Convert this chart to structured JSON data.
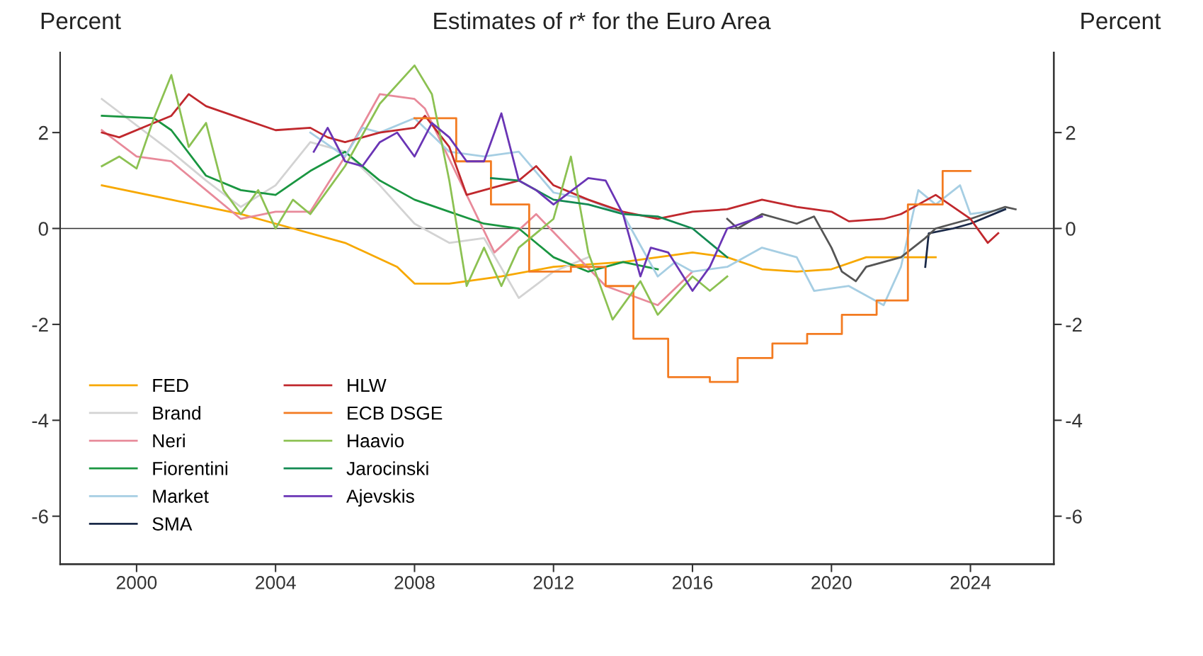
{
  "chart_data": {
    "type": "line",
    "title": "Estimates of r* for the Euro Area",
    "ylabel": "Percent",
    "y2label": "Percent",
    "xlim": [
      1997.8,
      2026.4
    ],
    "xticks": [
      2000,
      2004,
      2008,
      2012,
      2016,
      2020,
      2024
    ],
    "ylim": [
      -7,
      3.67
    ],
    "yticks": [
      {
        "value": -6,
        "label": "-6"
      },
      {
        "value": -4,
        "label": "-4"
      },
      {
        "value": -2,
        "label": "-2"
      },
      0,
      2
    ],
    "y2lim": [
      -7,
      3.67
    ],
    "y2ticks": [
      {
        "value": -6,
        "label": "-6"
      },
      {
        "value": -4,
        "label": "-4"
      },
      {
        "value": -2,
        "label": "-2"
      },
      0,
      2
    ],
    "ref_lines": [
      {
        "axis": "y",
        "value": 0,
        "label": null,
        "color": "#333333"
      }
    ],
    "legend": "bottom left",
    "grid": false,
    "series": [
      {
        "name": "FED",
        "color": "#f7a800",
        "x": [
          1999,
          2001,
          2003,
          2004,
          2006,
          2007.5,
          2008,
          2009,
          2010.5,
          2012,
          2014,
          2016,
          2017,
          2018,
          2019,
          2020,
          2021,
          2023
        ],
        "values": [
          0.9,
          0.6,
          0.3,
          0.1,
          -0.3,
          -0.8,
          -1.15,
          -1.15,
          -1.0,
          -0.8,
          -0.7,
          -0.5,
          -0.6,
          -0.85,
          -0.9,
          -0.85,
          -0.6,
          -0.6
        ]
      },
      {
        "name": "Brand",
        "color": "#d3d3d3",
        "x": [
          1999,
          2001,
          2002,
          2003,
          2004,
          2005,
          2006,
          2007,
          2008,
          2009,
          2010,
          2011,
          2012,
          2013
        ],
        "values": [
          2.7,
          1.6,
          1.0,
          0.45,
          0.9,
          1.8,
          1.6,
          0.9,
          0.1,
          -0.3,
          -0.2,
          -1.45,
          -0.9,
          -0.6
        ]
      },
      {
        "name": "Neri",
        "color": "#e88a9a",
        "x": [
          1999,
          2000,
          2001,
          2002,
          2003,
          2004,
          2005,
          2006,
          2007,
          2008,
          2008.3,
          2010.3,
          2011.5,
          2013.5,
          2015,
          2016
        ],
        "values": [
          2.05,
          1.5,
          1.4,
          0.8,
          0.2,
          0.35,
          0.35,
          1.5,
          2.8,
          2.7,
          2.5,
          -0.5,
          0.3,
          -1.2,
          -1.6,
          -0.9
        ]
      },
      {
        "name": "Fiorentini",
        "color": "#1a9641",
        "x": [
          1999,
          2000.5,
          2001,
          2002,
          2003,
          2004,
          2005,
          2006,
          2007,
          2008,
          2009,
          2010,
          2011,
          2012,
          2013,
          2014,
          2015
        ],
        "values": [
          2.35,
          2.3,
          2.05,
          1.1,
          0.8,
          0.7,
          1.2,
          1.6,
          1.0,
          0.6,
          0.35,
          0.1,
          0.0,
          -0.6,
          -0.9,
          -0.7,
          -0.85
        ]
      },
      {
        "name": "Market",
        "color": "#a6cee3",
        "x": [
          2005,
          2006,
          2006.5,
          2007,
          2008,
          2009,
          2010,
          2011,
          2012,
          2013,
          2014,
          2015,
          2015.5,
          2016,
          2017,
          2018,
          2019,
          2019.5,
          2020.5,
          2021.5,
          2022,
          2022.5,
          2023,
          2023.7,
          2024,
          2025
        ],
        "values": [
          2.0,
          1.5,
          2.1,
          2.0,
          2.3,
          1.6,
          1.5,
          1.6,
          0.75,
          0.6,
          0.3,
          -1.0,
          -0.7,
          -0.9,
          -0.8,
          -0.4,
          -0.6,
          -1.3,
          -1.2,
          -1.6,
          -0.8,
          0.8,
          0.5,
          0.9,
          0.3,
          0.4
        ]
      },
      {
        "name": "SMA",
        "color": "#1b2a49",
        "x": [
          2022.7,
          2022.8,
          2023.5,
          2024,
          2025
        ],
        "values": [
          -0.8,
          -0.1,
          0.0,
          0.1,
          0.4
        ]
      },
      {
        "color": "#555555",
        "x": [
          2017,
          2017.3,
          2018,
          2018.5,
          2019,
          2019.5,
          2020,
          2020.3,
          2020.7,
          2021,
          2022,
          2022.7,
          2023,
          2024,
          2025,
          2025.3
        ],
        "values": [
          0.2,
          0.0,
          0.3,
          0.2,
          0.1,
          0.25,
          -0.4,
          -0.9,
          -1.1,
          -0.8,
          -0.6,
          -0.2,
          0.0,
          0.2,
          0.45,
          0.4
        ]
      },
      {
        "name": "HLW",
        "color": "#c0282d",
        "x": [
          1999,
          1999.5,
          2000.5,
          2001,
          2001.5,
          2002,
          2003,
          2004,
          2005,
          2005.5,
          2006,
          2007,
          2008,
          2008.3,
          2009,
          2009.5,
          2011,
          2011.5,
          2012,
          2013,
          2014,
          2015,
          2016,
          2017,
          2018,
          2019,
          2020,
          2020.5,
          2021.5,
          2022,
          2023,
          2024,
          2024.5,
          2024.8
        ],
        "values": [
          2.0,
          1.9,
          2.2,
          2.35,
          2.8,
          2.55,
          2.3,
          2.05,
          2.1,
          1.9,
          1.8,
          2.0,
          2.1,
          2.35,
          1.7,
          0.7,
          1.0,
          1.3,
          0.9,
          0.6,
          0.35,
          0.2,
          0.35,
          0.4,
          0.6,
          0.45,
          0.35,
          0.15,
          0.2,
          0.3,
          0.7,
          0.2,
          -0.3,
          -0.1
        ]
      },
      {
        "name": "ECB DSGE",
        "color": "#f37b21",
        "type": "step",
        "x": [
          2008,
          2009.2,
          2010.2,
          2011.3,
          2012.5,
          2013.5,
          2014.3,
          2015.3,
          2016.5,
          2017.3,
          2018.3,
          2019.3,
          2020.3,
          2021.3,
          2022.2,
          2023.2,
          2024
        ],
        "values": [
          2.3,
          1.4,
          0.5,
          -0.9,
          -0.8,
          -1.2,
          -2.3,
          -3.1,
          -3.2,
          -2.7,
          -2.4,
          -2.2,
          -1.8,
          -1.5,
          0.5,
          1.2,
          1.2
        ]
      },
      {
        "name": "Haavio",
        "color": "#8cc152",
        "x": [
          1999,
          1999.5,
          2000,
          2000.5,
          2001,
          2001.5,
          2002,
          2002.5,
          2003,
          2003.5,
          2004,
          2004.5,
          2005,
          2005.5,
          2006,
          2007,
          2008,
          2008.5,
          2009,
          2009.5,
          2010,
          2010.5,
          2011,
          2012,
          2012.5,
          2013,
          2013.7,
          2014.5,
          2015,
          2016,
          2016.5,
          2017
        ],
        "values": [
          1.3,
          1.5,
          1.25,
          2.3,
          3.2,
          1.7,
          2.2,
          0.8,
          0.3,
          0.8,
          0.0,
          0.6,
          0.3,
          0.8,
          1.3,
          2.6,
          3.4,
          2.8,
          1.0,
          -1.2,
          -0.4,
          -1.2,
          -0.4,
          0.2,
          1.5,
          -0.5,
          -1.9,
          -1.1,
          -1.8,
          -1.0,
          -1.3,
          -1.0
        ]
      },
      {
        "name": "Jarocinski",
        "color": "#138a52",
        "x": [
          2010.2,
          2011,
          2012,
          2013,
          2014,
          2015,
          2016,
          2017
        ],
        "values": [
          1.05,
          1.0,
          0.6,
          0.5,
          0.3,
          0.25,
          0.0,
          -0.6
        ]
      },
      {
        "name": "Ajevskis",
        "color": "#6a35b5",
        "x": [
          2005.1,
          2005.5,
          2006,
          2006.5,
          2007,
          2007.5,
          2008,
          2008.5,
          2009,
          2009.5,
          2010,
          2010.5,
          2011,
          2011.5,
          2012,
          2013,
          2013.5,
          2014,
          2014.5,
          2014.8,
          2015.3,
          2016,
          2016.5,
          2017,
          2018
        ],
        "values": [
          1.6,
          2.1,
          1.4,
          1.3,
          1.8,
          2.0,
          1.5,
          2.2,
          1.9,
          1.4,
          1.4,
          2.4,
          1.0,
          0.8,
          0.5,
          1.05,
          1.0,
          0.3,
          -1.0,
          -0.4,
          -0.5,
          -1.3,
          -0.8,
          0.0,
          0.25
        ]
      }
    ]
  }
}
